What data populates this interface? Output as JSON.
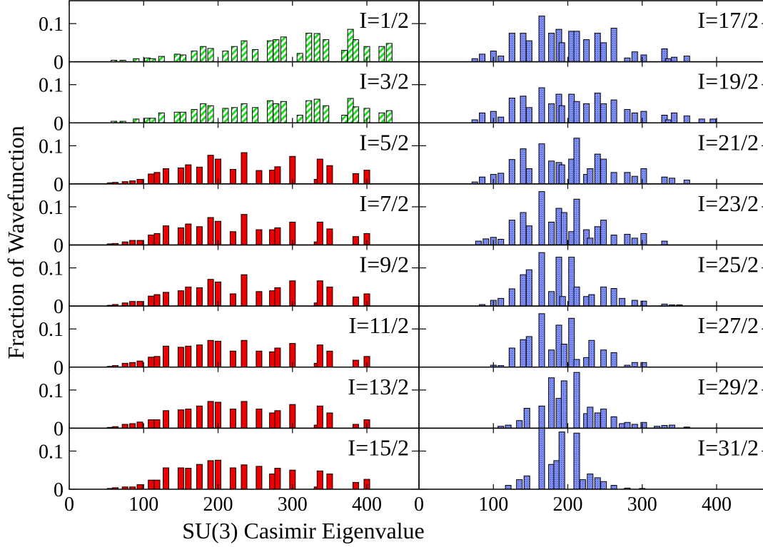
{
  "colors": {
    "green": "#22dd22",
    "red": "#ee0000",
    "blue": "#7f8ef2",
    "outline": "#000000"
  },
  "figure": {
    "ylabel": "Fraction of Wavefunction",
    "xlabel": "SU(3) Casimir Eigenvalue"
  },
  "chart_data": {
    "type": "bar",
    "layout": "grid of 16 panels, 8 rows x 2 columns, shared axes",
    "xlabel": "SU(3) Casimir Eigenvalue",
    "ylabel": "Fraction of Wavefunction",
    "xlim": [
      0,
      470
    ],
    "ylim": [
      0,
      0.16
    ],
    "xticks": [
      0,
      100,
      200,
      300,
      400
    ],
    "yticks": [
      0,
      0.1
    ],
    "ytick_labels": [
      "0",
      "0.1"
    ],
    "grid": false,
    "panels": [
      {
        "label": "I=1/2",
        "style": "green-hatched",
        "x": [
          60,
          72,
          90,
          105,
          112,
          124,
          145,
          153,
          168,
          180,
          190,
          210,
          222,
          235,
          250,
          270,
          278,
          288,
          310,
          322,
          333,
          345,
          370,
          378,
          385,
          400,
          420,
          430
        ],
        "values": [
          0.004,
          0.004,
          0.008,
          0.01,
          0.008,
          0.014,
          0.02,
          0.018,
          0.028,
          0.04,
          0.035,
          0.028,
          0.04,
          0.055,
          0.032,
          0.055,
          0.058,
          0.065,
          0.022,
          0.075,
          0.074,
          0.058,
          0.03,
          0.085,
          0.058,
          0.04,
          0.04,
          0.048
        ]
      },
      {
        "label": "I=3/2",
        "style": "green-hatched",
        "x": [
          60,
          72,
          90,
          105,
          112,
          124,
          145,
          153,
          168,
          180,
          190,
          210,
          222,
          235,
          250,
          270,
          278,
          288,
          310,
          322,
          333,
          345,
          370,
          378,
          385,
          400,
          420,
          430
        ],
        "values": [
          0.004,
          0.004,
          0.01,
          0.012,
          0.012,
          0.026,
          0.028,
          0.028,
          0.035,
          0.05,
          0.045,
          0.038,
          0.04,
          0.05,
          0.04,
          0.058,
          0.05,
          0.056,
          0.02,
          0.058,
          0.062,
          0.045,
          0.02,
          0.064,
          0.042,
          0.038,
          0.026,
          0.032
        ]
      },
      {
        "label": "I=5/2",
        "style": "red",
        "x": [
          55,
          62,
          75,
          85,
          95,
          110,
          118,
          130,
          150,
          160,
          175,
          190,
          200,
          220,
          235,
          255,
          273,
          280,
          300,
          333,
          337,
          350,
          385,
          400
        ],
        "values": [
          0.003,
          0.004,
          0.006,
          0.008,
          0.012,
          0.026,
          0.03,
          0.04,
          0.042,
          0.05,
          0.044,
          0.075,
          0.065,
          0.038,
          0.082,
          0.035,
          0.036,
          0.045,
          0.072,
          0.012,
          0.065,
          0.048,
          0.027,
          0.036
        ]
      },
      {
        "label": "I=7/2",
        "style": "red",
        "x": [
          55,
          62,
          75,
          85,
          95,
          110,
          118,
          130,
          150,
          160,
          175,
          190,
          200,
          220,
          235,
          255,
          273,
          280,
          300,
          333,
          337,
          350,
          385,
          400
        ],
        "values": [
          0.003,
          0.004,
          0.008,
          0.012,
          0.012,
          0.026,
          0.03,
          0.05,
          0.045,
          0.055,
          0.048,
          0.072,
          0.062,
          0.035,
          0.08,
          0.04,
          0.04,
          0.045,
          0.06,
          0.008,
          0.06,
          0.042,
          0.022,
          0.03
        ]
      },
      {
        "label": "I=9/2",
        "style": "red",
        "x": [
          55,
          62,
          75,
          85,
          95,
          110,
          118,
          130,
          150,
          160,
          175,
          190,
          200,
          220,
          235,
          255,
          273,
          280,
          300,
          333,
          337,
          350,
          385,
          400
        ],
        "values": [
          0.002,
          0.004,
          0.008,
          0.012,
          0.012,
          0.026,
          0.03,
          0.036,
          0.04,
          0.05,
          0.048,
          0.07,
          0.063,
          0.032,
          0.082,
          0.038,
          0.04,
          0.048,
          0.066,
          0.008,
          0.066,
          0.05,
          0.024,
          0.032
        ]
      },
      {
        "label": "I=11/2",
        "style": "red",
        "x": [
          55,
          62,
          75,
          85,
          95,
          110,
          118,
          130,
          150,
          160,
          175,
          190,
          200,
          220,
          235,
          255,
          273,
          280,
          300,
          333,
          337,
          350,
          385,
          400
        ],
        "values": [
          0.002,
          0.004,
          0.01,
          0.012,
          0.016,
          0.026,
          0.028,
          0.055,
          0.052,
          0.055,
          0.058,
          0.07,
          0.068,
          0.042,
          0.07,
          0.042,
          0.04,
          0.05,
          0.062,
          0.01,
          0.058,
          0.042,
          0.018,
          0.028
        ]
      },
      {
        "label": "I=13/2",
        "style": "red",
        "x": [
          55,
          62,
          75,
          85,
          95,
          110,
          118,
          130,
          150,
          160,
          175,
          190,
          200,
          220,
          235,
          255,
          273,
          280,
          300,
          333,
          337,
          350,
          385,
          400
        ],
        "values": [
          0.002,
          0.004,
          0.01,
          0.012,
          0.016,
          0.022,
          0.022,
          0.046,
          0.048,
          0.05,
          0.058,
          0.07,
          0.068,
          0.05,
          0.07,
          0.05,
          0.04,
          0.046,
          0.062,
          0.008,
          0.058,
          0.04,
          0.01,
          0.022
        ]
      },
      {
        "label": "I=15/2",
        "style": "red",
        "x": [
          55,
          62,
          75,
          85,
          95,
          110,
          118,
          130,
          150,
          160,
          175,
          190,
          200,
          220,
          235,
          255,
          273,
          280,
          300,
          333,
          337,
          350,
          385,
          400
        ],
        "values": [
          0.002,
          0.004,
          0.006,
          0.006,
          0.012,
          0.024,
          0.024,
          0.056,
          0.056,
          0.055,
          0.065,
          0.075,
          0.076,
          0.056,
          0.064,
          0.06,
          0.04,
          0.055,
          0.05,
          0.006,
          0.048,
          0.04,
          0.018,
          0.026
        ]
      },
      {
        "label": "I=17/2",
        "style": "blue",
        "x": [
          75,
          85,
          100,
          110,
          125,
          140,
          148,
          165,
          178,
          188,
          192,
          205,
          212,
          225,
          240,
          248,
          262,
          280,
          290,
          302,
          330,
          335,
          343,
          360
        ],
        "values": [
          0.008,
          0.02,
          0.028,
          0.015,
          0.075,
          0.075,
          0.055,
          0.12,
          0.075,
          0.085,
          0.05,
          0.08,
          0.08,
          0.058,
          0.075,
          0.05,
          0.088,
          0.01,
          0.026,
          0.018,
          0.034,
          0.008,
          0.012,
          0.015
        ]
      },
      {
        "label": "I=19/2",
        "style": "blue",
        "x": [
          75,
          85,
          100,
          110,
          125,
          140,
          148,
          165,
          178,
          188,
          192,
          205,
          212,
          225,
          240,
          248,
          262,
          280,
          290,
          302,
          330,
          335,
          343,
          360,
          380,
          395
        ],
        "values": [
          0.008,
          0.026,
          0.03,
          0.015,
          0.065,
          0.07,
          0.04,
          0.092,
          0.05,
          0.075,
          0.045,
          0.075,
          0.056,
          0.05,
          0.078,
          0.05,
          0.06,
          0.035,
          0.026,
          0.03,
          0.02,
          0.008,
          0.026,
          0.018,
          0.01,
          0.01
        ]
      },
      {
        "label": "I=21/2",
        "style": "blue",
        "x": [
          75,
          85,
          100,
          110,
          125,
          140,
          148,
          165,
          178,
          188,
          192,
          205,
          212,
          225,
          230,
          240,
          248,
          262,
          280,
          290,
          302,
          330,
          340,
          360
        ],
        "values": [
          0.005,
          0.018,
          0.025,
          0.028,
          0.064,
          0.092,
          0.04,
          0.105,
          0.06,
          0.056,
          0.05,
          0.065,
          0.12,
          0.025,
          0.04,
          0.078,
          0.065,
          0.03,
          0.03,
          0.02,
          0.04,
          0.018,
          0.015,
          0.01
        ]
      },
      {
        "label": "I=23/2",
        "style": "blue",
        "x": [
          80,
          90,
          100,
          110,
          125,
          140,
          148,
          165,
          178,
          188,
          195,
          205,
          212,
          225,
          230,
          240,
          248,
          262,
          280,
          290,
          302,
          330
        ],
        "values": [
          0.01,
          0.016,
          0.02,
          0.015,
          0.065,
          0.085,
          0.05,
          0.14,
          0.06,
          0.096,
          0.085,
          0.035,
          0.12,
          0.04,
          0.018,
          0.048,
          0.065,
          0.026,
          0.028,
          0.018,
          0.03,
          0.01
        ]
      },
      {
        "label": "I=25/2",
        "style": "blue",
        "x": [
          85,
          100,
          110,
          125,
          140,
          148,
          165,
          178,
          188,
          193,
          205,
          212,
          225,
          232,
          248,
          262,
          273,
          290,
          302,
          330,
          340,
          350
        ],
        "values": [
          0.004,
          0.015,
          0.02,
          0.045,
          0.082,
          0.095,
          0.14,
          0.038,
          0.128,
          0.025,
          0.128,
          0.05,
          0.025,
          0.03,
          0.05,
          0.046,
          0.02,
          0.015,
          0.013,
          0.005,
          0.003,
          0.003
        ]
      },
      {
        "label": "I=27/2",
        "style": "blue",
        "x": [
          100,
          110,
          125,
          140,
          148,
          165,
          178,
          188,
          195,
          205,
          212,
          225,
          232,
          248,
          262,
          280,
          290,
          302
        ],
        "values": [
          0.005,
          0.004,
          0.05,
          0.072,
          0.08,
          0.14,
          0.045,
          0.11,
          0.06,
          0.128,
          0.02,
          0.025,
          0.07,
          0.045,
          0.038,
          0.005,
          0.012,
          0.012
        ]
      },
      {
        "label": "I=29/2",
        "style": "blue",
        "x": [
          110,
          120,
          135,
          145,
          165,
          178,
          188,
          195,
          212,
          225,
          230,
          240,
          248,
          262,
          273,
          280,
          290,
          302,
          320,
          330,
          340,
          360
        ],
        "values": [
          0.005,
          0.008,
          0.02,
          0.052,
          0.058,
          0.132,
          0.078,
          0.124,
          0.146,
          0.038,
          0.055,
          0.04,
          0.05,
          0.03,
          0.012,
          0.015,
          0.01,
          0.015,
          0.005,
          0.007,
          0.008,
          0.003
        ]
      },
      {
        "label": "I=31/2",
        "style": "blue",
        "x": [
          120,
          135,
          145,
          165,
          178,
          185,
          192,
          212,
          220,
          230,
          240,
          248,
          262,
          280,
          300
        ],
        "values": [
          0.01,
          0.025,
          0.035,
          0.16,
          0.065,
          0.075,
          0.15,
          0.147,
          0.025,
          0.04,
          0.03,
          0.02,
          0.01,
          0.003,
          0.002
        ]
      }
    ]
  }
}
